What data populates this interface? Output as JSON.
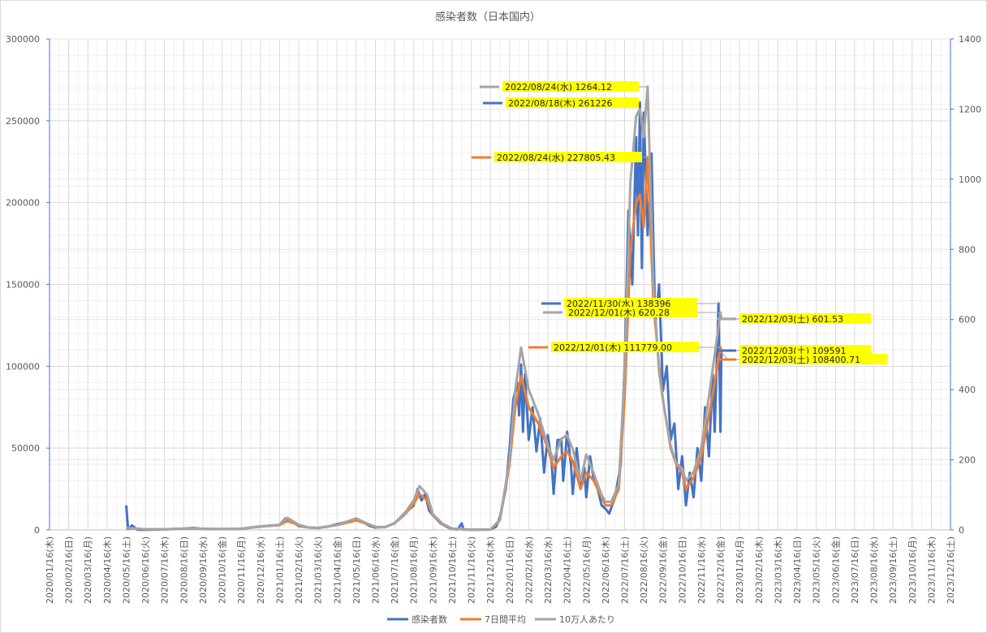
{
  "chart_data": {
    "type": "line",
    "title": "感染者数（日本国内）",
    "y_left_lim": [
      0,
      300000
    ],
    "y_right_lim": [
      0,
      1400
    ],
    "y_left_ticks": [
      "0",
      "50000",
      "100000",
      "150000",
      "200000",
      "250000",
      "300000"
    ],
    "y_right_ticks": [
      "0",
      "200",
      "400",
      "600",
      "800",
      "1000",
      "1200",
      "1400"
    ],
    "x_ticks": [
      "2020/01/16(木)",
      "2020/02/16(日)",
      "2020/03/16(月)",
      "2020/04/16(木)",
      "2020/05/16(土)",
      "2020/06/16(火)",
      "2020/07/16(木)",
      "2020/08/16(日)",
      "2020/09/16(水)",
      "2020/10/16(金)",
      "2020/11/16(月)",
      "2020/12/16(水)",
      "2021/01/16(土)",
      "2021/02/16(火)",
      "2021/03/16(火)",
      "2021/04/16(金)",
      "2021/05/16(日)",
      "2021/06/16(水)",
      "2021/07/16(金)",
      "2021/08/16(月)",
      "2021/09/16(木)",
      "2021/10/16(土)",
      "2021/11/16(火)",
      "2021/12/16(木)",
      "2022/01/16(日)",
      "2022/02/16(水)",
      "2022/03/16(水)",
      "2022/04/16(土)",
      "2022/05/16(月)",
      "2022/06/16(木)",
      "2022/07/16(土)",
      "2022/08/16(火)",
      "2022/09/16(金)",
      "2022/10/16(日)",
      "2022/11/16(水)",
      "2022/12/16(金)",
      "2023/01/16(月)",
      "2023/02/16(木)",
      "2023/03/16(木)",
      "2023/04/16(日)",
      "2023/05/16(火)",
      "2023/06/16(金)",
      "2023/07/16(日)",
      "2023/08/16(水)",
      "2023/09/16(土)",
      "2023/10/16(月)",
      "2023/11/16(木)",
      "2023/12/16(土)"
    ],
    "grid": true,
    "legend_position": "bottom",
    "series": [
      {
        "name": "感染者数",
        "axis": "left",
        "color": "#4472c4",
        "points": [
          [
            4.0,
            15000
          ],
          [
            4.1,
            500
          ],
          [
            4.3,
            2800
          ],
          [
            4.6,
            100
          ],
          [
            5.0,
            50
          ],
          [
            6.0,
            300
          ],
          [
            6.5,
            600
          ],
          [
            7.0,
            800
          ],
          [
            7.5,
            1200
          ],
          [
            8.0,
            700
          ],
          [
            8.5,
            500
          ],
          [
            9.0,
            550
          ],
          [
            10.0,
            700
          ],
          [
            10.5,
            1500
          ],
          [
            11.0,
            2200
          ],
          [
            11.5,
            2700
          ],
          [
            12.0,
            3000
          ],
          [
            12.3,
            7000
          ],
          [
            12.5,
            6000
          ],
          [
            12.8,
            4000
          ],
          [
            13.0,
            2500
          ],
          [
            13.5,
            1500
          ],
          [
            14.0,
            1200
          ],
          [
            14.5,
            2000
          ],
          [
            15.0,
            3500
          ],
          [
            15.5,
            5000
          ],
          [
            16.0,
            6500
          ],
          [
            16.4,
            4500
          ],
          [
            16.7,
            2500
          ],
          [
            17.0,
            1500
          ],
          [
            17.5,
            1800
          ],
          [
            18.0,
            4000
          ],
          [
            18.5,
            10000
          ],
          [
            19.0,
            15000
          ],
          [
            19.2,
            25000
          ],
          [
            19.4,
            18000
          ],
          [
            19.6,
            22000
          ],
          [
            19.8,
            12000
          ],
          [
            20.0,
            9000
          ],
          [
            20.4,
            4000
          ],
          [
            20.8,
            1500
          ],
          [
            21.0,
            600
          ],
          [
            21.3,
            300
          ],
          [
            21.5,
            4000
          ],
          [
            21.6,
            200
          ],
          [
            22.0,
            150
          ],
          [
            23.0,
            300
          ],
          [
            23.3,
            2000
          ],
          [
            23.5,
            8000
          ],
          [
            23.8,
            25000
          ],
          [
            24.0,
            50000
          ],
          [
            24.2,
            80000
          ],
          [
            24.4,
            90000
          ],
          [
            24.5,
            70000
          ],
          [
            24.6,
            101000
          ],
          [
            24.7,
            60000
          ],
          [
            24.8,
            95000
          ],
          [
            25.0,
            55000
          ],
          [
            25.2,
            75000
          ],
          [
            25.4,
            48000
          ],
          [
            25.6,
            68000
          ],
          [
            25.8,
            35000
          ],
          [
            26.0,
            58000
          ],
          [
            26.2,
            40000
          ],
          [
            26.3,
            22000
          ],
          [
            26.5,
            55000
          ],
          [
            26.7,
            55000
          ],
          [
            26.8,
            30000
          ],
          [
            27.0,
            60000
          ],
          [
            27.2,
            40000
          ],
          [
            27.3,
            22000
          ],
          [
            27.5,
            50000
          ],
          [
            27.7,
            25000
          ],
          [
            27.9,
            38000
          ],
          [
            28.0,
            20000
          ],
          [
            28.2,
            45000
          ],
          [
            28.4,
            30000
          ],
          [
            28.6,
            25000
          ],
          [
            28.8,
            15000
          ],
          [
            29.0,
            13000
          ],
          [
            29.2,
            10000
          ],
          [
            29.5,
            20000
          ],
          [
            29.8,
            40000
          ],
          [
            30.0,
            100000
          ],
          [
            30.2,
            195000
          ],
          [
            30.4,
            150000
          ],
          [
            30.6,
            240000
          ],
          [
            30.7,
            180000
          ],
          [
            30.8,
            261226
          ],
          [
            30.9,
            160000
          ],
          [
            31.0,
            255000
          ],
          [
            31.2,
            180000
          ],
          [
            31.4,
            230000
          ],
          [
            31.6,
            125000
          ],
          [
            31.8,
            150000
          ],
          [
            32.0,
            85000
          ],
          [
            32.2,
            100000
          ],
          [
            32.4,
            55000
          ],
          [
            32.6,
            65000
          ],
          [
            32.8,
            25000
          ],
          [
            33.0,
            45000
          ],
          [
            33.2,
            15000
          ],
          [
            33.4,
            35000
          ],
          [
            33.6,
            20000
          ],
          [
            33.8,
            50000
          ],
          [
            34.0,
            30000
          ],
          [
            34.2,
            75000
          ],
          [
            34.4,
            45000
          ],
          [
            34.6,
            95000
          ],
          [
            34.7,
            60000
          ],
          [
            34.9,
            138396
          ],
          [
            35.0,
            60000
          ],
          [
            35.05,
            109591
          ]
        ]
      },
      {
        "name": "7日間平均",
        "axis": "left",
        "color": "#ed7d31",
        "points": [
          [
            4.0,
            1000
          ],
          [
            4.5,
            800
          ],
          [
            5.0,
            400
          ],
          [
            6.0,
            400
          ],
          [
            7.0,
            800
          ],
          [
            8.0,
            700
          ],
          [
            9.0,
            500
          ],
          [
            10.0,
            700
          ],
          [
            11.0,
            2000
          ],
          [
            12.0,
            3000
          ],
          [
            12.4,
            5500
          ],
          [
            13.0,
            3000
          ],
          [
            13.5,
            1500
          ],
          [
            14.0,
            1200
          ],
          [
            15.0,
            3000
          ],
          [
            16.0,
            5800
          ],
          [
            16.5,
            4000
          ],
          [
            17.0,
            1800
          ],
          [
            17.5,
            1600
          ],
          [
            18.0,
            4000
          ],
          [
            18.5,
            9000
          ],
          [
            19.0,
            16000
          ],
          [
            19.3,
            22000
          ],
          [
            19.7,
            18000
          ],
          [
            20.0,
            9000
          ],
          [
            20.5,
            3500
          ],
          [
            21.0,
            700
          ],
          [
            22.0,
            150
          ],
          [
            23.0,
            200
          ],
          [
            23.5,
            6000
          ],
          [
            24.0,
            40000
          ],
          [
            24.3,
            75000
          ],
          [
            24.6,
            94000
          ],
          [
            25.0,
            75000
          ],
          [
            25.5,
            65000
          ],
          [
            26.0,
            50000
          ],
          [
            26.3,
            38000
          ],
          [
            26.7,
            45000
          ],
          [
            27.0,
            48000
          ],
          [
            27.3,
            42000
          ],
          [
            27.7,
            25000
          ],
          [
            28.0,
            35000
          ],
          [
            28.4,
            30000
          ],
          [
            28.8,
            20000
          ],
          [
            29.0,
            15000
          ],
          [
            29.3,
            15000
          ],
          [
            29.7,
            25000
          ],
          [
            30.0,
            80000
          ],
          [
            30.3,
            170000
          ],
          [
            30.6,
            200000
          ],
          [
            30.8,
            205000
          ],
          [
            31.0,
            185000
          ],
          [
            31.2,
            227805
          ],
          [
            31.5,
            140000
          ],
          [
            31.8,
            100000
          ],
          [
            32.0,
            80000
          ],
          [
            32.4,
            50000
          ],
          [
            32.7,
            40000
          ],
          [
            33.0,
            35000
          ],
          [
            33.2,
            25000
          ],
          [
            33.6,
            32000
          ],
          [
            34.0,
            45000
          ],
          [
            34.4,
            70000
          ],
          [
            34.7,
            90000
          ],
          [
            35.0,
            111779
          ],
          [
            35.05,
            108401
          ]
        ]
      },
      {
        "name": "10万人あたり",
        "axis": "right",
        "color": "#a5a5a5",
        "points": [
          [
            4.0,
            6
          ],
          [
            4.5,
            4
          ],
          [
            5.0,
            2
          ],
          [
            6.0,
            2
          ],
          [
            7.0,
            4
          ],
          [
            8.0,
            3.5
          ],
          [
            9.0,
            2.5
          ],
          [
            10.0,
            4
          ],
          [
            11.0,
            10
          ],
          [
            12.0,
            15
          ],
          [
            12.4,
            35
          ],
          [
            13.0,
            15
          ],
          [
            13.5,
            7
          ],
          [
            14.0,
            6
          ],
          [
            15.0,
            14
          ],
          [
            16.0,
            33
          ],
          [
            16.5,
            20
          ],
          [
            17.0,
            9
          ],
          [
            17.5,
            8
          ],
          [
            18.0,
            20
          ],
          [
            18.5,
            45
          ],
          [
            19.0,
            85
          ],
          [
            19.3,
            125
          ],
          [
            19.7,
            100
          ],
          [
            20.0,
            45
          ],
          [
            20.5,
            18
          ],
          [
            21.0,
            4
          ],
          [
            22.0,
            1
          ],
          [
            23.0,
            1
          ],
          [
            23.5,
            30
          ],
          [
            24.0,
            200
          ],
          [
            24.3,
            400
          ],
          [
            24.6,
            520
          ],
          [
            25.0,
            400
          ],
          [
            25.5,
            330
          ],
          [
            26.0,
            240
          ],
          [
            26.3,
            200
          ],
          [
            26.7,
            260
          ],
          [
            27.0,
            270
          ],
          [
            27.3,
            230
          ],
          [
            27.7,
            140
          ],
          [
            28.0,
            215
          ],
          [
            28.4,
            160
          ],
          [
            28.8,
            100
          ],
          [
            29.0,
            80
          ],
          [
            29.3,
            80
          ],
          [
            29.7,
            130
          ],
          [
            30.0,
            450
          ],
          [
            30.3,
            990
          ],
          [
            30.6,
            1180
          ],
          [
            30.8,
            1200
          ],
          [
            31.0,
            1120
          ],
          [
            31.2,
            1264.12
          ],
          [
            31.5,
            700
          ],
          [
            31.8,
            450
          ],
          [
            32.0,
            370
          ],
          [
            32.4,
            240
          ],
          [
            32.7,
            190
          ],
          [
            33.0,
            175
          ],
          [
            33.2,
            140
          ],
          [
            33.6,
            165
          ],
          [
            34.0,
            235
          ],
          [
            34.4,
            380
          ],
          [
            34.7,
            500
          ],
          [
            35.0,
            620.28
          ],
          [
            35.05,
            601.53
          ]
        ]
      }
    ],
    "annotations": [
      {
        "text": "2022/08/24(水) 1264.12",
        "series": 2,
        "at": [
          31.2,
          1264.12
        ]
      },
      {
        "text": "2022/08/18(木) 261226",
        "series": 0,
        "at": [
          30.8,
          261226
        ]
      },
      {
        "text": "2022/08/24(水) 227805.43",
        "series": 1,
        "at": [
          31.2,
          227805
        ]
      },
      {
        "text": "2022/11/30(水) 138396",
        "series": 0,
        "at": [
          34.9,
          138396
        ]
      },
      {
        "text": "2022/12/01(木) 620.28",
        "series": 2,
        "at": [
          35.0,
          620.28
        ]
      },
      {
        "text": "2022/12/03(土) 601.53",
        "series": 2,
        "at": [
          35.05,
          601.53
        ]
      },
      {
        "text": "2022/12/01(木) 111779.00",
        "series": 1,
        "at": [
          35.0,
          111779
        ]
      },
      {
        "text": "2022/12/03(土) 109591",
        "series": 0,
        "at": [
          35.05,
          109591
        ]
      },
      {
        "text": "2022/12/03(土) 108400.71",
        "series": 1,
        "at": [
          35.05,
          108401
        ]
      }
    ]
  }
}
